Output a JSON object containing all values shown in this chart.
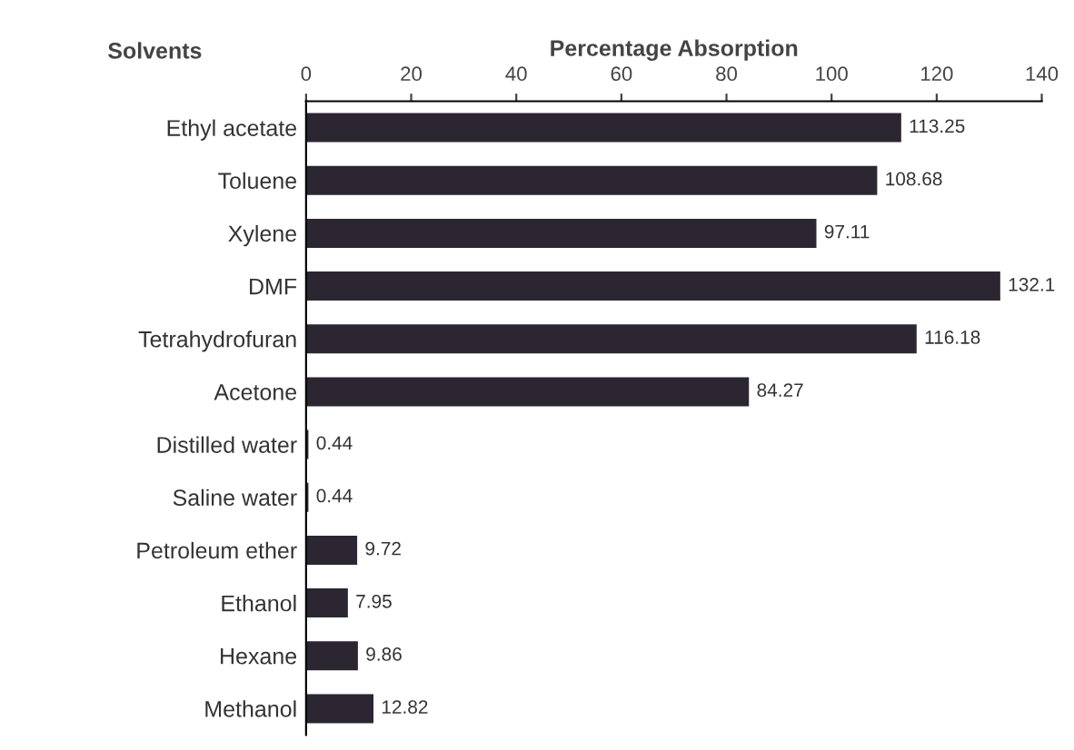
{
  "chart_data": {
    "type": "bar",
    "orientation": "horizontal",
    "xlabel": "Percentage Absorption",
    "ylabel": "Solvents",
    "categories": [
      "Ethyl acetate",
      "Toluene",
      "Xylene",
      "DMF",
      "Tetrahydrofuran",
      "Acetone",
      "Distilled water",
      "Saline water",
      "Petroleum ether",
      "Ethanol",
      "Hexane",
      "Methanol"
    ],
    "values": [
      113.25,
      108.68,
      97.11,
      132.1,
      116.18,
      84.27,
      0.44,
      0.44,
      9.72,
      7.95,
      9.86,
      12.82
    ],
    "color": "#2b2631",
    "xlim": [
      0,
      140
    ],
    "xticks": [
      0,
      20,
      40,
      60,
      80,
      100,
      120,
      140
    ],
    "grid": false,
    "data_labels": true
  }
}
